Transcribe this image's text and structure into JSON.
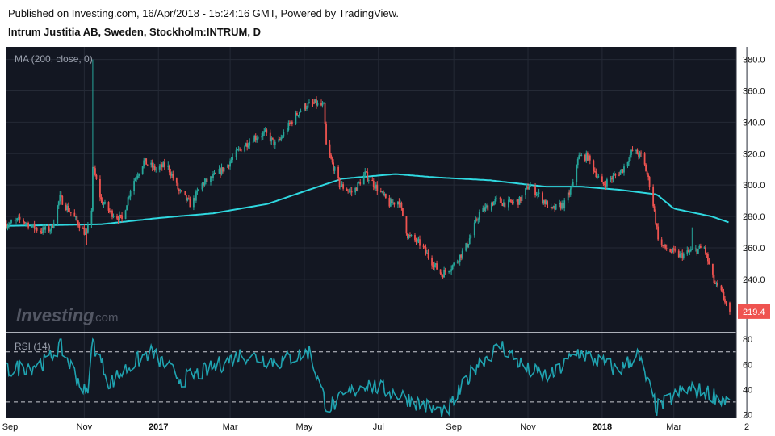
{
  "header": {
    "published": "Published on Investing.com, 16/Apr/2018 - 15:24:16 GMT, Powered by TradingView.",
    "title": "Intrum Justitia AB, Sweden, Stockholm:INTRUM, D"
  },
  "logo": {
    "main": "Investing",
    "suffix": ".com"
  },
  "colors": {
    "background": "#131722",
    "up": "#26a69a",
    "down": "#ef5350",
    "ma": "#2fd8e0",
    "rsi": "#1fa3b0",
    "grid": "#252a36",
    "last_price_bg": "#ef5350"
  },
  "chart_data": [
    {
      "type": "candlestick",
      "indicator_label": "MA (200, close, 0)",
      "price_ticks": [
        "380.0",
        "360.0",
        "340.0",
        "320.0",
        "300.0",
        "280.0",
        "260.0",
        "240.0"
      ],
      "ylim": [
        207,
        387
      ],
      "last_price": "219.4",
      "x_ticks": [
        "Sep",
        "Nov",
        "2017",
        "Mar",
        "May",
        "Jul",
        "Sep",
        "Nov",
        "2018",
        "Mar",
        "2"
      ],
      "anchors": [
        [
          "2016-08-29",
          275
        ],
        [
          "2016-09-10",
          278
        ],
        [
          "2016-09-25",
          271
        ],
        [
          "2016-10-05",
          272
        ],
        [
          "2016-10-12",
          292
        ],
        [
          "2016-10-25",
          278
        ],
        [
          "2016-11-03",
          268
        ],
        [
          "2016-11-07",
          285
        ],
        [
          "2016-11-08",
          312
        ],
        [
          "2016-11-15",
          290
        ],
        [
          "2016-11-22",
          283
        ],
        [
          "2016-12-02",
          278
        ],
        [
          "2016-12-10",
          300
        ],
        [
          "2016-12-20",
          315
        ],
        [
          "2016-12-30",
          310
        ],
        [
          "2017-01-08",
          313
        ],
        [
          "2017-01-18",
          296
        ],
        [
          "2017-01-28",
          287
        ],
        [
          "2017-02-05",
          300
        ],
        [
          "2017-02-15",
          305
        ],
        [
          "2017-02-26",
          312
        ],
        [
          "2017-03-08",
          322
        ],
        [
          "2017-03-20",
          330
        ],
        [
          "2017-03-30",
          333
        ],
        [
          "2017-04-08",
          325
        ],
        [
          "2017-04-20",
          340
        ],
        [
          "2017-04-30",
          350
        ],
        [
          "2017-05-10",
          352
        ],
        [
          "2017-05-17",
          350
        ],
        [
          "2017-05-19",
          325
        ],
        [
          "2017-05-30",
          300
        ],
        [
          "2017-06-10",
          295
        ],
        [
          "2017-06-20",
          307
        ],
        [
          "2017-06-30",
          298
        ],
        [
          "2017-07-10",
          288
        ],
        [
          "2017-07-18",
          290
        ],
        [
          "2017-07-25",
          268
        ],
        [
          "2017-08-05",
          262
        ],
        [
          "2017-08-15",
          250
        ],
        [
          "2017-08-22",
          243
        ],
        [
          "2017-09-02",
          250
        ],
        [
          "2017-09-12",
          262
        ],
        [
          "2017-09-22",
          282
        ],
        [
          "2017-10-05",
          290
        ],
        [
          "2017-10-15",
          288
        ],
        [
          "2017-10-25",
          290
        ],
        [
          "2017-11-02",
          300
        ],
        [
          "2017-11-12",
          292
        ],
        [
          "2017-11-20",
          284
        ],
        [
          "2017-12-01",
          288
        ],
        [
          "2017-12-08",
          300
        ],
        [
          "2017-12-12",
          318
        ],
        [
          "2017-12-20",
          318
        ],
        [
          "2018-01-01",
          300
        ],
        [
          "2018-01-10",
          305
        ],
        [
          "2018-01-18",
          310
        ],
        [
          "2018-01-26",
          322
        ],
        [
          "2018-02-03",
          318
        ],
        [
          "2018-02-10",
          298
        ],
        [
          "2018-02-17",
          262
        ],
        [
          "2018-02-26",
          258
        ],
        [
          "2018-03-06",
          255
        ],
        [
          "2018-03-16",
          258
        ],
        [
          "2018-03-26",
          260
        ],
        [
          "2018-04-03",
          238
        ],
        [
          "2018-04-10",
          230
        ],
        [
          "2018-04-16",
          219.4
        ]
      ],
      "moving_average": {
        "name": "MA (200, close, 0)",
        "points": [
          [
            "2016-08-29",
            274
          ],
          [
            "2016-11-15",
            275
          ],
          [
            "2017-01-01",
            279
          ],
          [
            "2017-02-15",
            282
          ],
          [
            "2017-04-01",
            288
          ],
          [
            "2017-05-01",
            296
          ],
          [
            "2017-06-01",
            304
          ],
          [
            "2017-07-15",
            307
          ],
          [
            "2017-08-15",
            305
          ],
          [
            "2017-10-01",
            303
          ],
          [
            "2017-11-15",
            299
          ],
          [
            "2017-12-15",
            299
          ],
          [
            "2018-01-15",
            297
          ],
          [
            "2018-02-15",
            294
          ],
          [
            "2018-03-01",
            285
          ],
          [
            "2018-04-01",
            280
          ],
          [
            "2018-04-16",
            276
          ]
        ]
      }
    },
    {
      "type": "line",
      "indicator_label": "RSI (14)",
      "ylim": [
        17,
        84
      ],
      "y_ticks": [
        "80",
        "60",
        "40",
        "20"
      ],
      "bands": [
        70,
        30
      ],
      "anchors": [
        [
          "2016-08-29",
          55
        ],
        [
          "2016-10-01",
          62
        ],
        [
          "2016-10-12",
          75
        ],
        [
          "2016-11-03",
          35
        ],
        [
          "2016-11-08",
          78
        ],
        [
          "2016-11-22",
          45
        ],
        [
          "2016-12-10",
          60
        ],
        [
          "2016-12-25",
          70
        ],
        [
          "2017-01-20",
          48
        ],
        [
          "2017-02-10",
          55
        ],
        [
          "2017-03-10",
          68
        ],
        [
          "2017-04-10",
          62
        ],
        [
          "2017-05-05",
          70
        ],
        [
          "2017-05-20",
          25
        ],
        [
          "2017-06-20",
          45
        ],
        [
          "2017-07-20",
          35
        ],
        [
          "2017-08-25",
          20
        ],
        [
          "2017-09-20",
          60
        ],
        [
          "2017-10-10",
          75
        ],
        [
          "2017-11-01",
          55
        ],
        [
          "2017-11-20",
          50
        ],
        [
          "2017-12-12",
          70
        ],
        [
          "2018-01-15",
          55
        ],
        [
          "2018-01-30",
          68
        ],
        [
          "2018-02-15",
          25
        ],
        [
          "2018-03-10",
          40
        ],
        [
          "2018-03-28",
          38
        ],
        [
          "2018-04-16",
          30
        ]
      ]
    }
  ]
}
